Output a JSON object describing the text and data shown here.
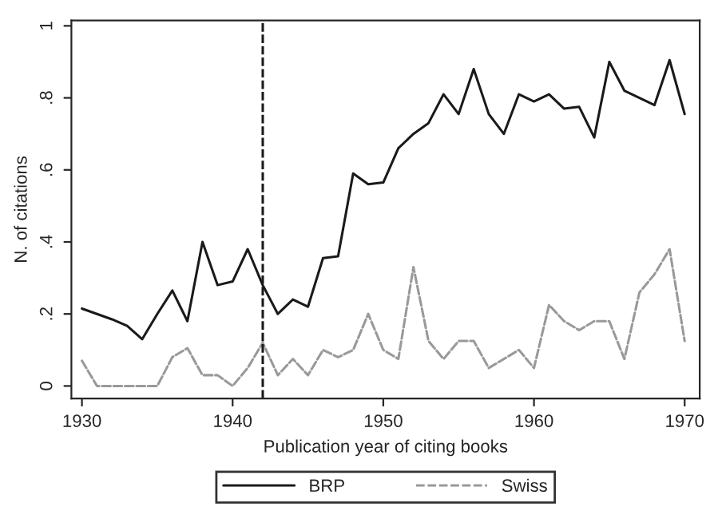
{
  "chart_data": {
    "type": "line",
    "xlabel": "Publication year of citing books",
    "ylabel": "N. of citations",
    "x": [
      1930,
      1931,
      1932,
      1933,
      1934,
      1935,
      1936,
      1937,
      1938,
      1939,
      1940,
      1941,
      1942,
      1943,
      1944,
      1945,
      1946,
      1947,
      1948,
      1949,
      1950,
      1951,
      1952,
      1953,
      1954,
      1955,
      1956,
      1957,
      1958,
      1959,
      1960,
      1961,
      1962,
      1963,
      1964,
      1965,
      1966,
      1967,
      1968,
      1969,
      1970
    ],
    "series": [
      {
        "name": "BRP",
        "color": "#1a1a1a",
        "line_style": "solid",
        "values": [
          0.215,
          0.2,
          0.185,
          0.167,
          0.13,
          0.2,
          0.265,
          0.18,
          0.4,
          0.28,
          0.29,
          0.38,
          0.28,
          0.2,
          0.24,
          0.22,
          0.355,
          0.36,
          0.59,
          0.56,
          0.565,
          0.66,
          0.7,
          0.73,
          0.81,
          0.755,
          0.88,
          0.755,
          0.7,
          0.81,
          0.79,
          0.81,
          0.77,
          0.775,
          0.69,
          0.9,
          0.82,
          0.8,
          0.78,
          0.905,
          0.755
        ]
      },
      {
        "name": "Swiss",
        "color": "#999999",
        "line_style": "dashed",
        "values": [
          0.07,
          0,
          0,
          0,
          0,
          0,
          0.08,
          0.105,
          0.03,
          0.03,
          0,
          0.05,
          0.12,
          0.03,
          0.075,
          0.03,
          0.1,
          0.08,
          0.1,
          0.2,
          0.1,
          0.075,
          0.33,
          0.125,
          0.075,
          0.125,
          0.125,
          0.05,
          0.075,
          0.1,
          0.05,
          0.225,
          0.18,
          0.155,
          0.18,
          0.18,
          0.075,
          0.26,
          0.31,
          0.38,
          0.125
        ]
      }
    ],
    "xlim": [
      1929.3,
      1971
    ],
    "ylim": [
      -0.035,
      1.015
    ],
    "xticks": [
      1930,
      1940,
      1950,
      1960,
      1970
    ],
    "yticks": [
      0,
      {
        "value": 0.2,
        "label": ".2"
      },
      {
        "value": 0.4,
        "label": ".4"
      },
      {
        "value": 0.6,
        "label": ".6"
      },
      {
        "value": 0.8,
        "label": ".8"
      },
      1
    ],
    "ref_lines": [
      {
        "axis": "x",
        "value": 1942,
        "color": "#1a1a1a",
        "line_style": "dashed"
      }
    ],
    "grid": false,
    "legend": "bottom"
  }
}
